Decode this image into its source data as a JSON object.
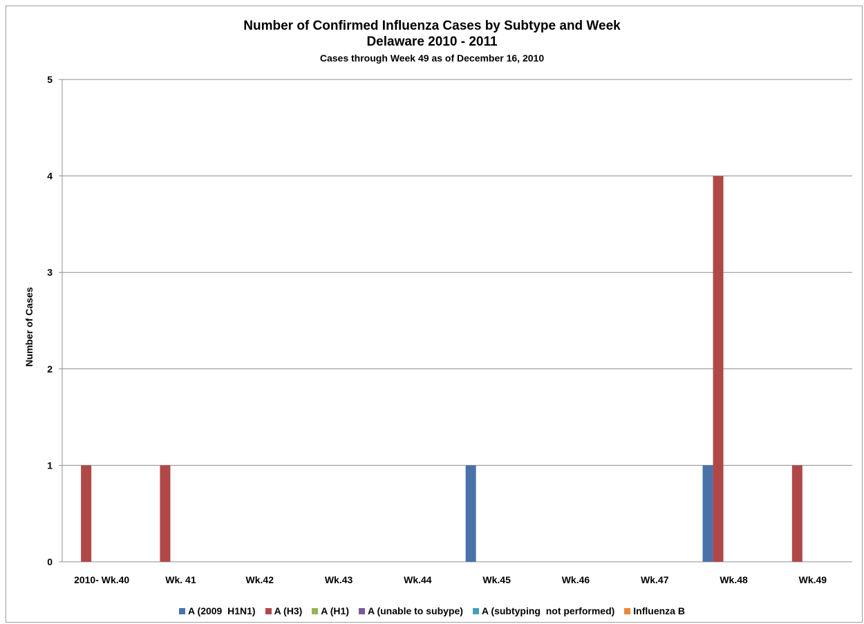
{
  "chart_data": {
    "type": "bar",
    "title": "Number of Confirmed Influenza Cases by Subtype and Week",
    "subtitle": "Delaware 2010 - 2011",
    "subtitle2": "Cases through Week 49 as of December 16, 2010",
    "xlabel": "",
    "ylabel": "Number of Cases",
    "ylim": [
      0,
      5
    ],
    "yticks": [
      0,
      1,
      2,
      3,
      4,
      5
    ],
    "grid": true,
    "legend_position": "bottom",
    "categories": [
      "2010- Wk.40",
      "Wk. 41",
      "Wk.42",
      "Wk.43",
      "Wk.44",
      "Wk.45",
      "Wk.46",
      "Wk.47",
      "Wk.48",
      "Wk.49"
    ],
    "series": [
      {
        "name": "A (2009  H1N1)",
        "color": "#4a72aa",
        "values": [
          0,
          0,
          0,
          0,
          0,
          1,
          0,
          0,
          1,
          0
        ]
      },
      {
        "name": "A (H3)",
        "color": "#b04848",
        "values": [
          1,
          1,
          0,
          0,
          0,
          0,
          0,
          0,
          4,
          1
        ]
      },
      {
        "name": "A (H1)",
        "color": "#95b356",
        "values": [
          0,
          0,
          0,
          0,
          0,
          0,
          0,
          0,
          0,
          0
        ]
      },
      {
        "name": "A (unable to subype)",
        "color": "#7a5a9a",
        "values": [
          0,
          0,
          0,
          0,
          0,
          0,
          0,
          0,
          0,
          0
        ]
      },
      {
        "name": "A (subtyping  not performed)",
        "color": "#40a0b8",
        "values": [
          0,
          0,
          0,
          0,
          0,
          0,
          0,
          0,
          0,
          0
        ]
      },
      {
        "name": "Influenza B",
        "color": "#e88a3a",
        "values": [
          0,
          0,
          0,
          0,
          0,
          0,
          0,
          0,
          0,
          0
        ]
      }
    ]
  }
}
